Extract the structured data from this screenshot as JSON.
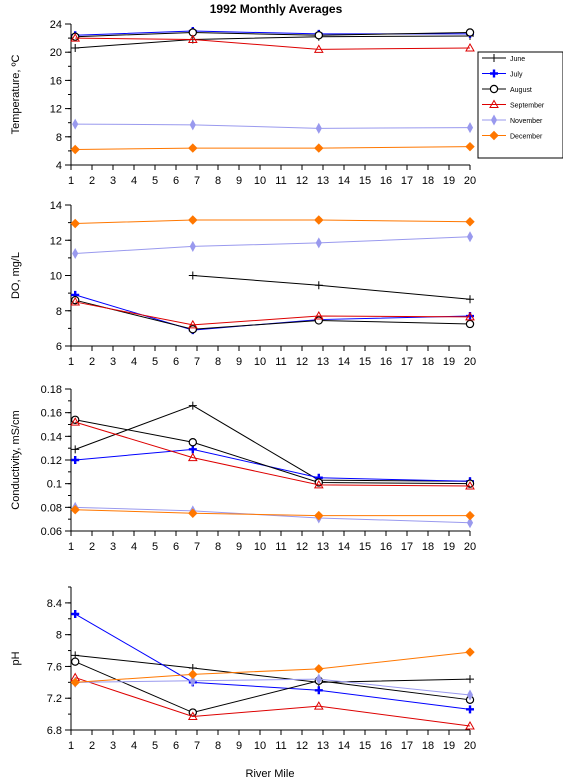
{
  "chart_data": {
    "type": "line",
    "title": "1992 Monthly Averages",
    "xlabel": "River Mile",
    "x_ticks": [
      1,
      2,
      3,
      4,
      5,
      6,
      7,
      8,
      9,
      10,
      11,
      12,
      13,
      14,
      15,
      16,
      17,
      18,
      19,
      20
    ],
    "xlim": [
      1,
      20
    ],
    "grid": false,
    "legend_position": "right of top panel",
    "series_styles": [
      {
        "name": "June",
        "color": "#000000",
        "marker": "plus"
      },
      {
        "name": "July",
        "color": "#0000ff",
        "marker": "bold-plus"
      },
      {
        "name": "August",
        "color": "#000000",
        "marker": "circle"
      },
      {
        "name": "September",
        "color": "#dd0000",
        "marker": "triangle"
      },
      {
        "name": "November",
        "color": "#9999ee",
        "marker": "diamond"
      },
      {
        "name": "December",
        "color": "#ff7700",
        "marker": "diamond-filled"
      }
    ],
    "panels": [
      {
        "ylabel": "Temperature, ºC",
        "ylim": [
          4,
          24
        ],
        "yticks": [
          "4",
          "8",
          "12",
          "16",
          "20",
          "24"
        ],
        "ytick_values": [
          4,
          8,
          12,
          16,
          20,
          24
        ],
        "y_minor_step": 2,
        "series": [
          {
            "name": "June",
            "x": [
              1.2,
              6.8,
              12.8,
              20
            ],
            "y": [
              20.6,
              21.8,
              22.2,
              22.3
            ]
          },
          {
            "name": "July",
            "x": [
              1.2,
              6.8,
              12.8,
              20
            ],
            "y": [
              22.4,
              23.0,
              22.6,
              22.6
            ]
          },
          {
            "name": "August",
            "x": [
              1.2,
              6.8,
              12.8,
              20
            ],
            "y": [
              22.2,
              22.8,
              22.4,
              22.8
            ]
          },
          {
            "name": "September",
            "x": [
              1.2,
              6.8,
              12.8,
              20
            ],
            "y": [
              22.0,
              21.8,
              20.4,
              20.6
            ]
          },
          {
            "name": "November",
            "x": [
              1.2,
              6.8,
              12.8,
              20
            ],
            "y": [
              9.8,
              9.7,
              9.2,
              9.3
            ]
          },
          {
            "name": "December",
            "x": [
              1.2,
              6.8,
              12.8,
              20
            ],
            "y": [
              6.2,
              6.4,
              6.4,
              6.6
            ]
          }
        ]
      },
      {
        "ylabel": "DO, mg/L",
        "ylim": [
          6,
          14
        ],
        "yticks": [
          "6",
          "8",
          "10",
          "12",
          "14"
        ],
        "ytick_values": [
          6,
          8,
          10,
          12,
          14
        ],
        "y_minor_step": 1,
        "series": [
          {
            "name": "June",
            "x": [
              6.8,
              12.8,
              20
            ],
            "y": [
              10.0,
              9.45,
              8.65
            ]
          },
          {
            "name": "July",
            "x": [
              1.2,
              6.8,
              12.8,
              20
            ],
            "y": [
              8.9,
              6.9,
              7.5,
              7.7
            ]
          },
          {
            "name": "August",
            "x": [
              1.2,
              6.8,
              12.8,
              20
            ],
            "y": [
              8.6,
              6.95,
              7.45,
              7.25
            ]
          },
          {
            "name": "September",
            "x": [
              1.2,
              6.8,
              12.8,
              20
            ],
            "y": [
              8.5,
              7.2,
              7.7,
              7.65
            ]
          },
          {
            "name": "November",
            "x": [
              1.2,
              6.8,
              12.8,
              20
            ],
            "y": [
              11.25,
              11.65,
              11.85,
              12.2
            ]
          },
          {
            "name": "December",
            "x": [
              1.2,
              6.8,
              12.8,
              20
            ],
            "y": [
              12.95,
              13.15,
              13.15,
              13.05
            ]
          }
        ]
      },
      {
        "ylabel": "Conductivity, mS/cm",
        "ylim": [
          0.06,
          0.18
        ],
        "yticks": [
          "0.06",
          "0.08",
          "0.1",
          "0.12",
          "0.14",
          "0.16",
          "0.18"
        ],
        "ytick_values": [
          0.06,
          0.08,
          0.1,
          0.12,
          0.14,
          0.16,
          0.18
        ],
        "y_minor_step": 0.01,
        "series": [
          {
            "name": "June",
            "x": [
              1.2,
              6.8,
              12.8,
              20
            ],
            "y": [
              0.129,
              0.166,
              0.103,
              0.102
            ]
          },
          {
            "name": "July",
            "x": [
              1.2,
              6.8,
              12.8,
              20
            ],
            "y": [
              0.12,
              0.129,
              0.105,
              0.102
            ]
          },
          {
            "name": "August",
            "x": [
              1.2,
              6.8,
              12.8,
              20
            ],
            "y": [
              0.154,
              0.135,
              0.101,
              0.1
            ]
          },
          {
            "name": "September",
            "x": [
              1.2,
              6.8,
              12.8,
              20
            ],
            "y": [
              0.152,
              0.122,
              0.099,
              0.098
            ]
          },
          {
            "name": "November",
            "x": [
              1.2,
              6.8,
              12.8,
              20
            ],
            "y": [
              0.08,
              0.077,
              0.071,
              0.067
            ]
          },
          {
            "name": "December",
            "x": [
              1.2,
              6.8,
              12.8,
              20
            ],
            "y": [
              0.078,
              0.075,
              0.073,
              0.073
            ]
          }
        ]
      },
      {
        "ylabel": "pH",
        "ylim": [
          6.8,
          8.6
        ],
        "yticks": [
          "6.8",
          "7.2",
          "7.6",
          "8",
          "8.4"
        ],
        "ytick_values": [
          6.8,
          7.2,
          7.6,
          8.0,
          8.4
        ],
        "y_minor_step": 0.2,
        "series": [
          {
            "name": "June",
            "x": [
              1.2,
              6.8,
              12.8,
              20
            ],
            "y": [
              7.74,
              7.58,
              7.4,
              7.44
            ]
          },
          {
            "name": "July",
            "x": [
              1.2,
              6.8,
              12.8,
              20
            ],
            "y": [
              8.26,
              7.4,
              7.3,
              7.06
            ]
          },
          {
            "name": "August",
            "x": [
              1.2,
              6.8,
              12.8,
              20
            ],
            "y": [
              7.66,
              7.02,
              7.42,
              7.18
            ]
          },
          {
            "name": "September",
            "x": [
              1.2,
              6.8,
              12.8,
              20
            ],
            "y": [
              7.46,
              6.97,
              7.1,
              6.85
            ]
          },
          {
            "name": "November",
            "x": [
              1.2,
              6.8,
              12.8,
              20
            ],
            "y": [
              7.4,
              7.42,
              7.44,
              7.24
            ]
          },
          {
            "name": "December",
            "x": [
              1.2,
              6.8,
              12.8,
              20
            ],
            "y": [
              7.4,
              7.5,
              7.57,
              7.78
            ]
          }
        ]
      }
    ]
  }
}
